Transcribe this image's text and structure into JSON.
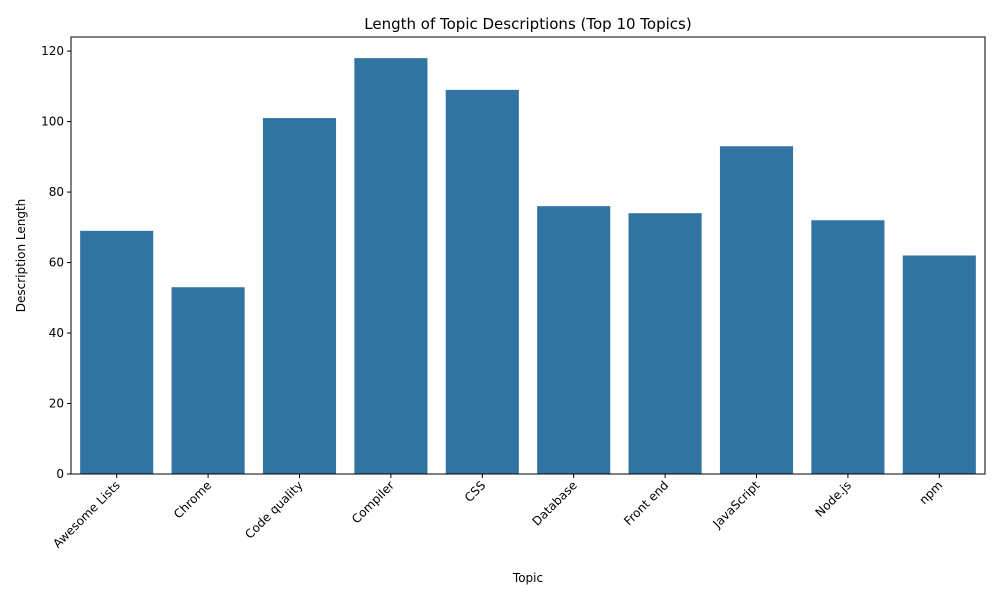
{
  "chart_data": {
    "type": "bar",
    "title": "Length of Topic Descriptions (Top 10 Topics)",
    "xlabel": "Topic",
    "ylabel": "Description Length",
    "categories": [
      "Awesome Lists",
      "Chrome",
      "Code quality",
      "Compiler",
      "CSS",
      "Database",
      "Front end",
      "JavaScript",
      "Node.js",
      "npm"
    ],
    "values": [
      69,
      53,
      101,
      118,
      109,
      76,
      74,
      93,
      72,
      62
    ],
    "ylim": [
      0,
      124
    ],
    "yticks": [
      0,
      20,
      40,
      60,
      80,
      100,
      120
    ],
    "bar_color": "#3274a1",
    "grid": false,
    "x_tick_rotation": 45
  }
}
